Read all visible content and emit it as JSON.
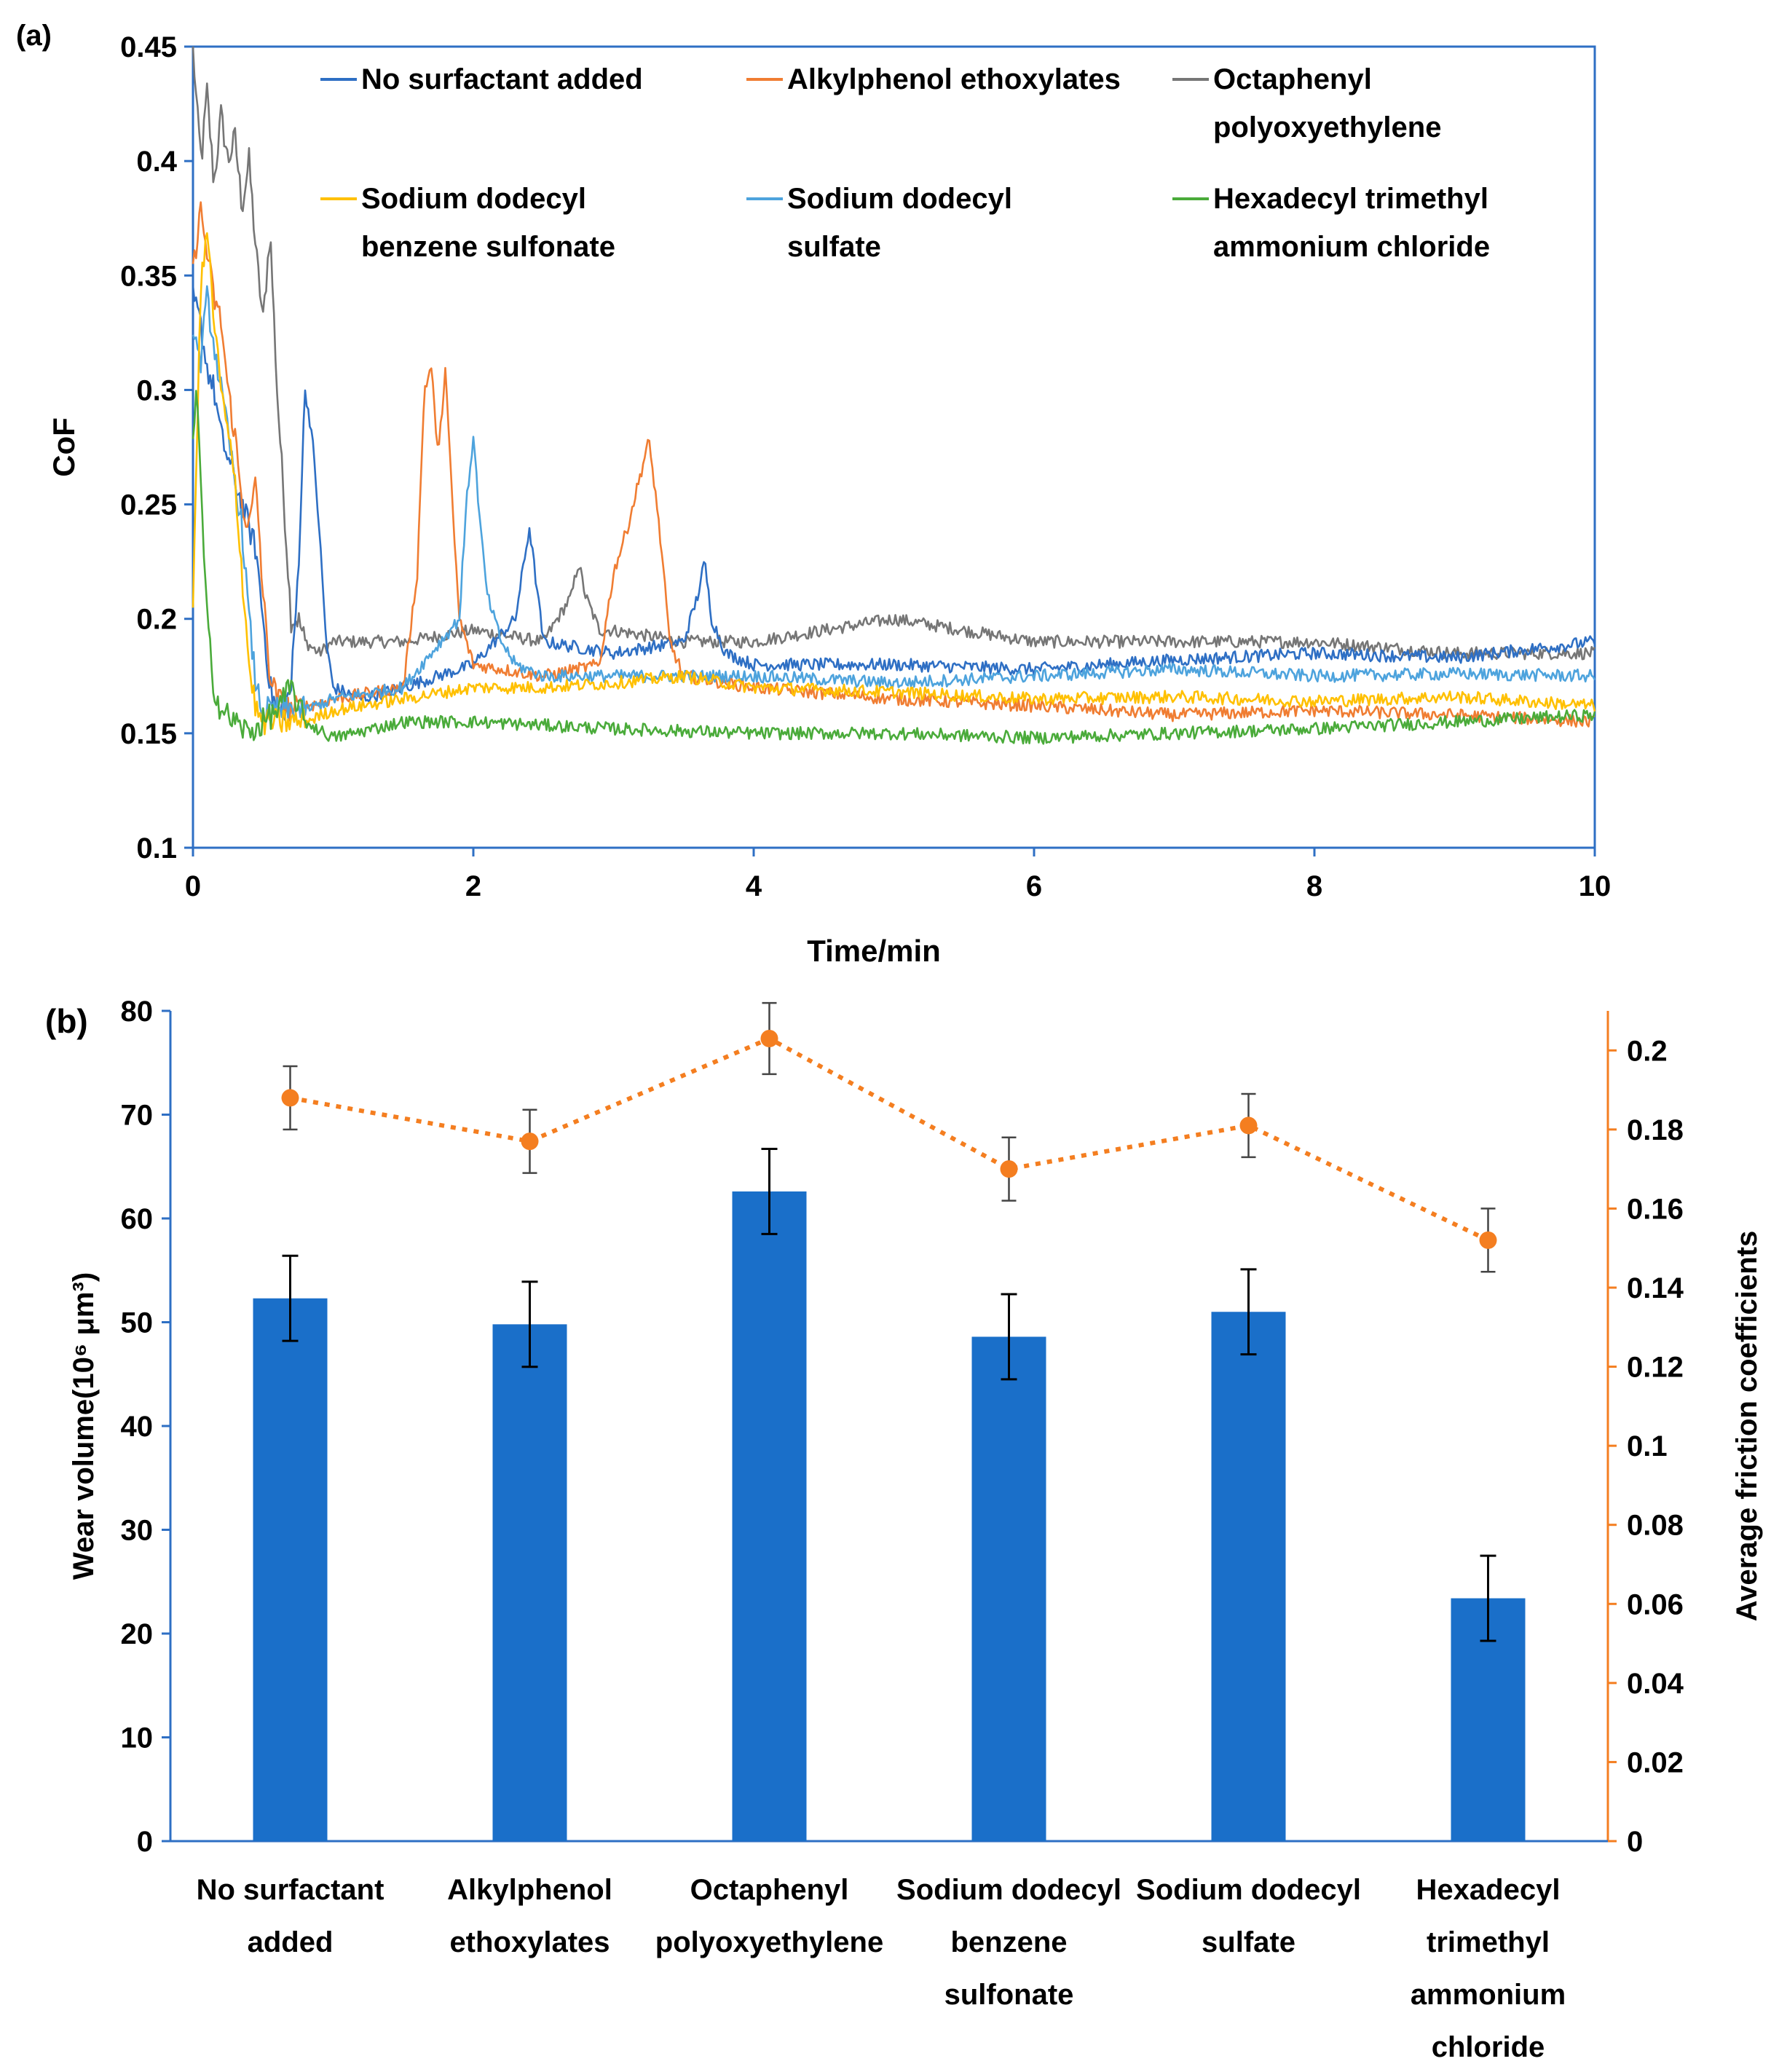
{
  "chart_data": [
    {
      "panel_label": "(a)",
      "type": "line",
      "xlabel": "Time/min",
      "ylabel": "CoF",
      "xlim": [
        0,
        10
      ],
      "ylim": [
        0.1,
        0.45
      ],
      "x_ticks": [
        "0",
        "2",
        "4",
        "6",
        "8",
        "10"
      ],
      "y_ticks": [
        "0.1",
        "0.15",
        "0.2",
        "0.25",
        "0.3",
        "0.35",
        "0.4",
        "0.45"
      ],
      "legend_position": "top",
      "series": [
        {
          "name": "No surfactant added",
          "legend_lines": [
            "No surfactant added"
          ],
          "color": "#2e6fc4",
          "x": [
            0,
            0.05,
            0.1,
            0.15,
            0.2,
            0.25,
            0.3,
            0.35,
            0.4,
            0.45,
            0.5,
            0.55,
            0.6,
            0.65,
            0.7,
            0.75,
            0.8,
            0.85,
            0.9,
            0.95,
            1.0,
            1.2,
            1.5,
            2.0,
            2.3,
            2.4,
            2.5,
            3.0,
            3.5,
            3.6,
            3.65,
            3.7,
            3.8,
            4,
            5,
            6,
            7,
            8,
            9,
            10
          ],
          "values": [
            0.34,
            0.33,
            0.31,
            0.3,
            0.28,
            0.27,
            0.26,
            0.25,
            0.24,
            0.23,
            0.2,
            0.17,
            0.16,
            0.16,
            0.17,
            0.22,
            0.3,
            0.28,
            0.24,
            0.19,
            0.17,
            0.165,
            0.17,
            0.18,
            0.2,
            0.24,
            0.19,
            0.185,
            0.19,
            0.21,
            0.225,
            0.2,
            0.185,
            0.18,
            0.18,
            0.178,
            0.182,
            0.185,
            0.183,
            0.19
          ]
        },
        {
          "name": "Alkylphenol ethoxylates",
          "legend_lines": [
            "Alkylphenol ethoxylates"
          ],
          "color": "#f07d32",
          "x": [
            0,
            0.05,
            0.1,
            0.15,
            0.2,
            0.25,
            0.3,
            0.35,
            0.4,
            0.45,
            0.5,
            0.55,
            0.6,
            0.7,
            1.0,
            1.5,
            1.6,
            1.65,
            1.7,
            1.75,
            1.8,
            1.85,
            1.9,
            2.0,
            2.5,
            2.9,
            3.0,
            3.1,
            3.2,
            3.25,
            3.3,
            3.35,
            3.4,
            3.5,
            4,
            5,
            6,
            7,
            8,
            9,
            10
          ],
          "values": [
            0.35,
            0.38,
            0.36,
            0.34,
            0.33,
            0.3,
            0.28,
            0.25,
            0.24,
            0.26,
            0.21,
            0.175,
            0.165,
            0.16,
            0.165,
            0.17,
            0.22,
            0.3,
            0.31,
            0.27,
            0.31,
            0.25,
            0.2,
            0.18,
            0.175,
            0.18,
            0.22,
            0.24,
            0.265,
            0.278,
            0.255,
            0.225,
            0.19,
            0.175,
            0.17,
            0.165,
            0.162,
            0.158,
            0.16,
            0.158,
            0.155
          ]
        },
        {
          "name": "Octaphenyl polyoxyethylene",
          "legend_lines": [
            "Octaphenyl",
            "polyoxyethylene"
          ],
          "color": "#767676",
          "x": [
            0,
            0.03,
            0.06,
            0.1,
            0.15,
            0.2,
            0.25,
            0.3,
            0.35,
            0.4,
            0.45,
            0.5,
            0.55,
            0.6,
            0.65,
            0.7,
            0.75,
            0.8,
            0.9,
            1.0,
            1.5,
            2.0,
            2.5,
            2.7,
            2.75,
            2.8,
            2.9,
            3.0,
            3.5,
            4.0,
            4.5,
            5.0,
            6,
            7,
            8,
            9,
            10
          ],
          "values": [
            0.45,
            0.42,
            0.4,
            0.43,
            0.39,
            0.42,
            0.4,
            0.41,
            0.38,
            0.4,
            0.36,
            0.33,
            0.37,
            0.3,
            0.25,
            0.2,
            0.2,
            0.19,
            0.185,
            0.19,
            0.19,
            0.195,
            0.19,
            0.21,
            0.225,
            0.21,
            0.195,
            0.195,
            0.19,
            0.19,
            0.195,
            0.2,
            0.19,
            0.19,
            0.19,
            0.185,
            0.185
          ]
        },
        {
          "name": "Sodium dodecyl benzene sulfonate",
          "legend_lines": [
            "Sodium dodecyl",
            "benzene sulfonate"
          ],
          "color": "#ffc000",
          "x": [
            0,
            0.05,
            0.1,
            0.15,
            0.2,
            0.25,
            0.3,
            0.35,
            0.4,
            0.45,
            0.5,
            0.6,
            0.8,
            1.0,
            1.5,
            2.0,
            2.5,
            3.0,
            3.5,
            4.0,
            5,
            6,
            7,
            8,
            9,
            10
          ],
          "values": [
            0.2,
            0.34,
            0.37,
            0.33,
            0.3,
            0.28,
            0.26,
            0.22,
            0.18,
            0.16,
            0.155,
            0.155,
            0.155,
            0.16,
            0.165,
            0.17,
            0.17,
            0.172,
            0.175,
            0.17,
            0.168,
            0.165,
            0.166,
            0.164,
            0.166,
            0.162
          ]
        },
        {
          "name": "Sodium dodecyl sulfate",
          "legend_lines": [
            "Sodium dodecyl",
            "sulfate"
          ],
          "color": "#4da3dd",
          "x": [
            0,
            0.05,
            0.1,
            0.15,
            0.2,
            0.25,
            0.3,
            0.35,
            0.4,
            0.45,
            0.5,
            0.6,
            0.8,
            1.0,
            1.5,
            1.9,
            1.95,
            2.0,
            2.05,
            2.1,
            2.2,
            2.3,
            2.5,
            3.0,
            3.5,
            4.0,
            5,
            6,
            7,
            8,
            9,
            10
          ],
          "values": [
            0.33,
            0.31,
            0.34,
            0.32,
            0.3,
            0.28,
            0.26,
            0.24,
            0.2,
            0.17,
            0.16,
            0.16,
            0.16,
            0.165,
            0.17,
            0.2,
            0.25,
            0.28,
            0.24,
            0.21,
            0.19,
            0.18,
            0.175,
            0.175,
            0.175,
            0.175,
            0.172,
            0.175,
            0.178,
            0.175,
            0.176,
            0.175
          ]
        },
        {
          "name": "Hexadecyl trimethyl ammonium chloride",
          "legend_lines": [
            "Hexadecyl trimethyl",
            "ammonium chloride"
          ],
          "color": "#4aab3a",
          "x": [
            0,
            0.03,
            0.06,
            0.1,
            0.15,
            0.2,
            0.3,
            0.4,
            0.5,
            0.6,
            0.7,
            0.8,
            1.0,
            1.5,
            2.0,
            3,
            4,
            5,
            6,
            7,
            8,
            9,
            10
          ],
          "values": [
            0.28,
            0.3,
            0.25,
            0.2,
            0.17,
            0.16,
            0.155,
            0.15,
            0.155,
            0.16,
            0.17,
            0.155,
            0.148,
            0.155,
            0.155,
            0.152,
            0.15,
            0.15,
            0.148,
            0.15,
            0.152,
            0.155,
            0.158
          ]
        }
      ]
    },
    {
      "panel_label": "(b)",
      "type": "bar",
      "categories": [
        "No surfactant added",
        "Alkylphenol ethoxylates",
        "Octaphenyl polyoxyethylene",
        "Sodium dodecyl benzene sulfonate",
        "Sodium dodecyl sulfate",
        "Hexadecyl trimethyl ammonium chloride"
      ],
      "category_lines": [
        [
          "No surfactant",
          "added"
        ],
        [
          "Alkylphenol",
          "ethoxylates"
        ],
        [
          "Octaphenyl",
          "polyoxyethylene"
        ],
        [
          "Sodium dodecyl",
          "benzene",
          "sulfonate"
        ],
        [
          "Sodium dodecyl",
          "sulfate"
        ],
        [
          "Hexadecyl",
          "trimethyl",
          "ammonium",
          "chloride"
        ]
      ],
      "ylabel": "Wear volume(10⁶ μm³)",
      "y2label": "Average friction coefficients",
      "ylim": [
        0,
        80
      ],
      "y2lim": [
        0,
        0.21
      ],
      "y_ticks": [
        "0",
        "10",
        "20",
        "30",
        "40",
        "50",
        "60",
        "70",
        "80"
      ],
      "y2_ticks": [
        "0",
        "0.02",
        "0.04",
        "0.06",
        "0.08",
        "0.1",
        "0.12",
        "0.14",
        "0.16",
        "0.18",
        "0.2"
      ],
      "series": [
        {
          "name": "Wear volume",
          "kind": "bar",
          "color": "#1a6fc9",
          "values": [
            52.3,
            49.8,
            62.6,
            48.6,
            51.0,
            23.4
          ],
          "errors": [
            4.1,
            4.1,
            4.1,
            4.1,
            4.1,
            4.1
          ]
        },
        {
          "name": "Average friction coefficients",
          "kind": "line",
          "axis": "right",
          "color": "#f47e20",
          "values": [
            0.188,
            0.177,
            0.203,
            0.17,
            0.181,
            0.152
          ],
          "errors": [
            0.008,
            0.008,
            0.009,
            0.008,
            0.008,
            0.008
          ]
        }
      ]
    }
  ]
}
